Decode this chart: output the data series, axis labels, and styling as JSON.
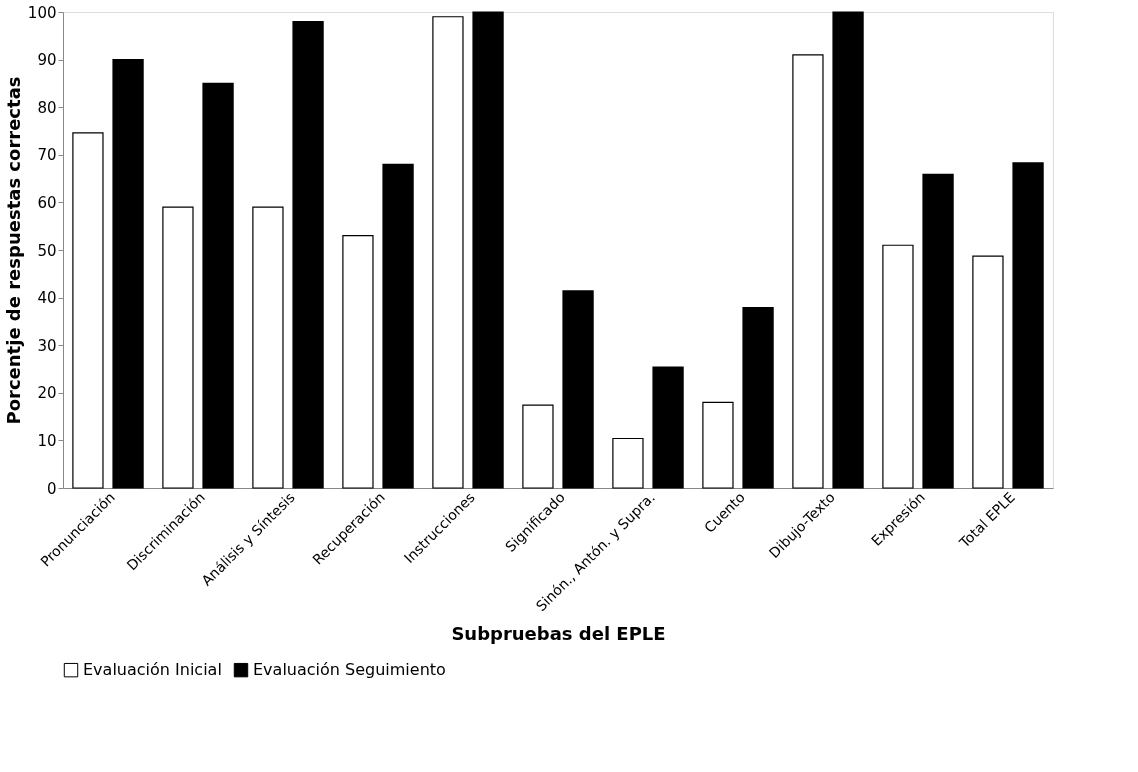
{
  "chart_data": {
    "type": "bar",
    "xlabel": "Subpruebas del EPLE",
    "ylabel": "Porcentje de respuestas correctas",
    "categories": [
      "Pronunciación",
      "Discriminación",
      "Análisis y Síntesis",
      "Recuperación",
      "Instrucciones",
      "Significado",
      "Sinón., Antón. y Supra.",
      "Cuento",
      "Dibujo-Texto",
      "Expresión",
      "Total EPLE"
    ],
    "series": [
      {
        "name": "Evaluación Inicial",
        "color": "#ffffff",
        "values": [
          74.6,
          59,
          59,
          53,
          99,
          17.4,
          10.4,
          18,
          91,
          51,
          48.7
        ]
      },
      {
        "name": "Evaluación Seguimiento",
        "color": "#000000",
        "values": [
          90,
          85,
          98,
          68,
          100,
          41.4,
          25.4,
          37.9,
          100,
          65.9,
          68.3
        ]
      }
    ],
    "ylim": [
      0,
      100
    ],
    "yticks": [
      0,
      10,
      20,
      30,
      40,
      50,
      60,
      70,
      80,
      90,
      100
    ],
    "grid": false,
    "legend": "bottom"
  }
}
